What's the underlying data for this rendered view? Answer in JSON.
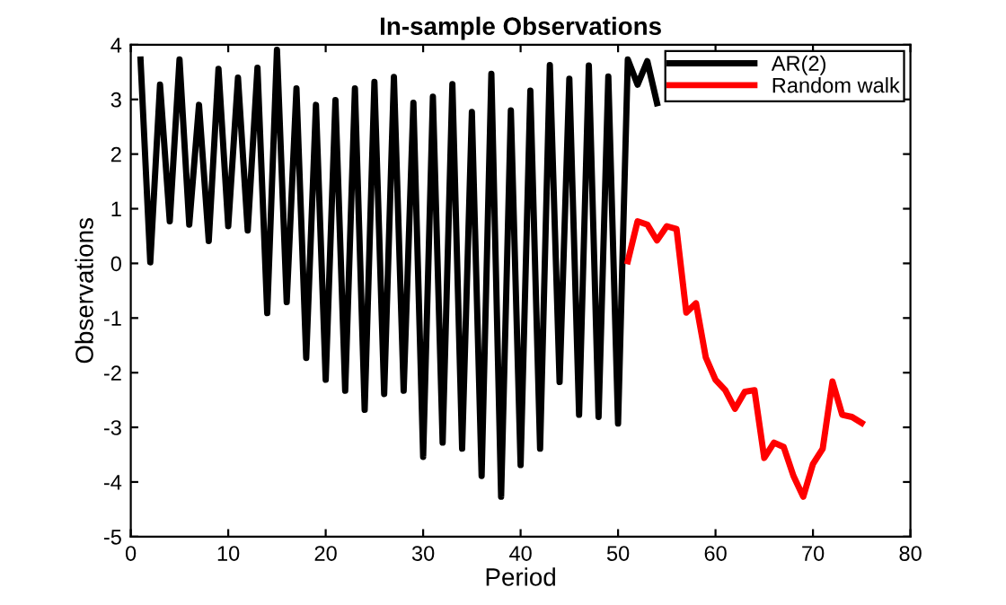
{
  "chart_data": {
    "type": "line",
    "title": "In-sample Observations",
    "xlabel": "Period",
    "ylabel": "Observations",
    "xlim": [
      0,
      80
    ],
    "xticks": [
      0,
      10,
      20,
      30,
      40,
      50,
      60,
      70,
      80
    ],
    "ylim": [
      -5,
      4
    ],
    "yticks": [
      -5,
      -4,
      -3,
      -2,
      -1,
      0,
      1,
      2,
      3,
      4
    ],
    "grid": false,
    "legend": "top right",
    "line_style": "solid",
    "marker": "none",
    "series": [
      {
        "name": "AR(2)",
        "color": "#000000",
        "x": [
          1,
          2,
          3,
          4,
          5,
          6,
          7,
          8,
          9,
          10,
          11,
          12,
          13,
          14,
          15,
          16,
          17,
          18,
          19,
          20,
          21,
          22,
          23,
          24,
          25,
          26,
          27,
          28,
          29,
          30,
          31,
          32,
          33,
          34,
          35,
          36,
          37,
          38,
          39,
          40,
          41,
          42,
          43,
          44,
          45,
          46,
          47,
          48,
          49,
          50,
          51,
          52,
          53,
          54
        ],
        "values": [
          3.73,
          0.02,
          3.27,
          0.77,
          3.73,
          0.71,
          2.9,
          0.41,
          3.56,
          0.68,
          3.4,
          0.6,
          3.58,
          -0.91,
          3.91,
          -0.71,
          3.2,
          -1.73,
          2.9,
          -2.13,
          2.99,
          -2.33,
          3.2,
          -2.68,
          3.32,
          -2.39,
          3.41,
          -2.33,
          2.94,
          -3.54,
          3.05,
          -3.28,
          3.28,
          -3.39,
          2.77,
          -3.89,
          3.47,
          -4.27,
          2.8,
          -3.69,
          3.16,
          -3.39,
          3.63,
          -2.17,
          3.38,
          -2.77,
          3.62,
          -2.81,
          3.42,
          -2.93,
          3.73,
          3.27,
          3.7,
          2.93
        ]
      },
      {
        "name": "Random walk",
        "color": "#ff0000",
        "x": [
          51,
          52,
          53,
          54,
          55,
          56,
          57,
          58,
          59,
          60,
          61,
          62,
          63,
          64,
          65,
          66,
          67,
          68,
          69,
          70,
          71,
          72,
          73,
          74,
          75
        ],
        "values": [
          0.04,
          0.77,
          0.71,
          0.42,
          0.68,
          0.63,
          -0.9,
          -0.73,
          -1.72,
          -2.13,
          -2.32,
          -2.66,
          -2.35,
          -2.32,
          -3.56,
          -3.28,
          -3.36,
          -3.89,
          -4.27,
          -3.67,
          -3.39,
          -2.16,
          -2.77,
          -2.81,
          -2.92
        ]
      }
    ]
  }
}
